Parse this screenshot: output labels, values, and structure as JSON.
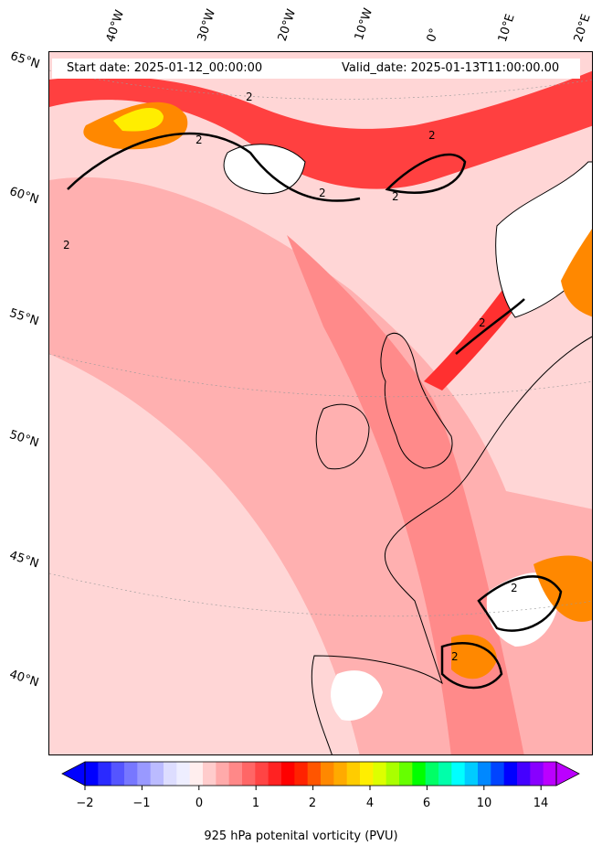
{
  "header": {
    "start_date": "Start date: 2025-01-12_00:00:00",
    "valid_date": "Valid_date: 2025-01-13T11:00:00.00"
  },
  "latitude_labels": [
    "65°N",
    "60°N",
    "55°N",
    "50°N",
    "45°N",
    "40°N"
  ],
  "longitude_labels": [
    "40°W",
    "30°W",
    "20°W",
    "10°W",
    "0°",
    "10°E",
    "20°E"
  ],
  "contour_label": "2",
  "colorbar": {
    "title": "925 hPa potenital vorticity (PVU)",
    "tick_labels": [
      "−2",
      "−1",
      "0",
      "1",
      "2",
      "4",
      "6",
      "10",
      "14"
    ],
    "colors": [
      "#0000ff",
      "#2a2aff",
      "#5555ff",
      "#7777ff",
      "#9999ff",
      "#bbbbff",
      "#ddddff",
      "#eeeeff",
      "#ffeeee",
      "#ffcccc",
      "#ffaaaa",
      "#ff8888",
      "#ff6666",
      "#ff4444",
      "#ff2222",
      "#ff0000",
      "#ff2200",
      "#ff5500",
      "#ff8800",
      "#ffaa00",
      "#ffcc00",
      "#ffee00",
      "#ddff00",
      "#aaff00",
      "#66ff00",
      "#00ff00",
      "#00ff66",
      "#00ffaa",
      "#00ffff",
      "#00ccff",
      "#0088ff",
      "#0044ff",
      "#0000ff",
      "#4400ff",
      "#8800ff",
      "#bb00ff"
    ]
  }
}
